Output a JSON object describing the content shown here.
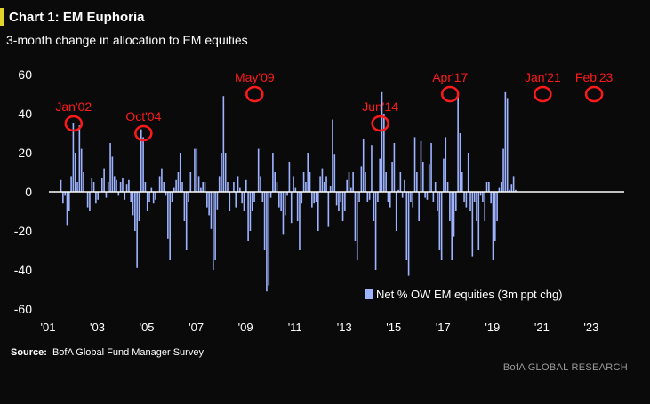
{
  "header": {
    "title": "Chart 1: EM Euphoria",
    "subtitle": "3-month change in allocation to EM equities"
  },
  "footer": {
    "source_label": "Source:",
    "source_text": "BofA Global Fund Manager Survey",
    "brand": "BofA GLOBAL RESEARCH"
  },
  "colors": {
    "background": "#0a0a0a",
    "bars": "#9db3ff",
    "zero_line": "#ffffff",
    "annotation": "#ff1a1a",
    "title_accent": "#e3d22a"
  },
  "chart_data": {
    "type": "bar",
    "title": "Chart 1: EM Euphoria",
    "subtitle": "3-month change in allocation to EM equities",
    "xlabel": "",
    "ylabel": "",
    "ylim": [
      -60,
      60
    ],
    "yticks": [
      60,
      40,
      20,
      0,
      -20,
      -40,
      -60
    ],
    "xlim": [
      2001.0,
      2024.3
    ],
    "xticks": [
      {
        "year": 2001.0,
        "label": "'01"
      },
      {
        "year": 2003.0,
        "label": "'03"
      },
      {
        "year": 2005.0,
        "label": "'05"
      },
      {
        "year": 2007.0,
        "label": "'07"
      },
      {
        "year": 2009.0,
        "label": "'09"
      },
      {
        "year": 2011.0,
        "label": "'11"
      },
      {
        "year": 2013.0,
        "label": "'13"
      },
      {
        "year": 2015.0,
        "label": "'15"
      },
      {
        "year": 2017.0,
        "label": "'17"
      },
      {
        "year": 2019.0,
        "label": "'19"
      },
      {
        "year": 2021.0,
        "label": "'21"
      },
      {
        "year": 2023.0,
        "label": "'23"
      }
    ],
    "legend": {
      "label": "Net % OW EM equities (3m ppt chg)",
      "position": "bottom-right"
    },
    "grid": false,
    "series": [
      {
        "name": "Net % OW EM equities (3m ppt chg)",
        "start": 2001.5,
        "step": 0.0833333,
        "values": [
          6,
          -6,
          -2,
          -17,
          -10,
          8,
          35,
          20,
          5,
          34,
          22,
          10,
          0,
          -8,
          -10,
          7,
          5,
          -6,
          -4,
          0,
          7,
          12,
          -3,
          5,
          25,
          18,
          8,
          6,
          -2,
          5,
          7,
          -4,
          4,
          6,
          -5,
          -12,
          -20,
          -39,
          -15,
          32,
          28,
          5,
          -10,
          -5,
          2,
          -6,
          -4,
          0,
          8,
          12,
          5,
          -2,
          -24,
          -35,
          -5,
          2,
          6,
          10,
          20,
          5,
          -15,
          -30,
          -5,
          10,
          0,
          22,
          22,
          8,
          2,
          5,
          5,
          -8,
          -12,
          -19,
          -40,
          -35,
          -9,
          8,
          20,
          49,
          20,
          5,
          -10,
          0,
          5,
          -8,
          8,
          2,
          -6,
          -10,
          6,
          -25,
          -20,
          -10,
          -5,
          0,
          22,
          8,
          -5,
          -30,
          -51,
          -48,
          -3,
          20,
          10,
          5,
          -8,
          -10,
          -22,
          -12,
          -2,
          15,
          -16,
          8,
          2,
          -15,
          -30,
          -6,
          10,
          5,
          20,
          10,
          -8,
          -6,
          -5,
          -20,
          8,
          12,
          5,
          8,
          -18,
          3,
          37,
          19,
          -7,
          -10,
          -5,
          -15,
          -10,
          6,
          10,
          2,
          10,
          -25,
          -35,
          -5,
          13,
          27,
          10,
          -5,
          -4,
          24,
          -15,
          -40,
          -5,
          17,
          51,
          40,
          10,
          -5,
          -8,
          15,
          25,
          -20,
          1,
          10,
          -3,
          6,
          -35,
          -43,
          -5,
          -8,
          28,
          10,
          -15,
          26,
          15,
          -3,
          -4,
          14,
          25,
          -5,
          5,
          -10,
          -30,
          -35,
          17,
          28,
          5,
          -15,
          -35,
          -23,
          -10,
          51,
          30,
          10,
          -5,
          -8,
          20,
          -10,
          -33,
          -5,
          -15,
          -30,
          -2,
          -5,
          -15,
          5,
          5,
          -6,
          -35,
          -25,
          -15,
          2,
          5,
          22,
          51,
          48,
          1,
          4,
          8,
          1
        ]
      }
    ],
    "annotations": [
      {
        "label": "Jan'02",
        "x": 2002.0,
        "y": 35
      },
      {
        "label": "Oct'04",
        "x": 2004.83,
        "y": 30
      },
      {
        "label": "May'09",
        "x": 2009.33,
        "y": 50
      },
      {
        "label": "Jun'14",
        "x": 2014.42,
        "y": 35
      },
      {
        "label": "Apr'17",
        "x": 2017.25,
        "y": 50
      },
      {
        "label": "Jan'21",
        "x": 2021.0,
        "y": 50
      },
      {
        "label": "Feb'23",
        "x": 2023.08,
        "y": 50
      }
    ]
  }
}
